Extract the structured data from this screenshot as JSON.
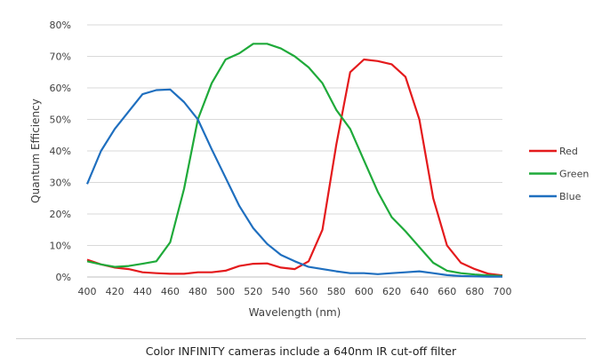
{
  "caption": "Color INFINITY cameras include a 640nm IR cut-off filter",
  "chart_data": {
    "type": "line",
    "title": "",
    "xlabel": "Wavelength (nm)",
    "ylabel": "Quantum Efficiency",
    "xlim": [
      400,
      700
    ],
    "ylim": [
      0,
      80
    ],
    "xticks": [
      "400",
      "420",
      "440",
      "460",
      "480",
      "500",
      "520",
      "540",
      "560",
      "580",
      "600",
      "620",
      "640",
      "660",
      "680",
      "700"
    ],
    "yticks": [
      "0%",
      "10%",
      "20%",
      "30%",
      "40%",
      "50%",
      "60%",
      "70%",
      "80%"
    ],
    "grid": true,
    "legend": "right",
    "series": [
      {
        "name": "Red",
        "color": "#e41a1c",
        "points": [
          [
            400,
            5.5
          ],
          [
            410,
            4
          ],
          [
            420,
            3
          ],
          [
            430,
            2.5
          ],
          [
            440,
            1.5
          ],
          [
            450,
            1.2
          ],
          [
            460,
            1
          ],
          [
            470,
            1
          ],
          [
            480,
            1.5
          ],
          [
            490,
            1.5
          ],
          [
            500,
            2
          ],
          [
            510,
            3.5
          ],
          [
            520,
            4.2
          ],
          [
            530,
            4.3
          ],
          [
            540,
            3
          ],
          [
            550,
            2.5
          ],
          [
            560,
            5
          ],
          [
            570,
            15
          ],
          [
            580,
            42
          ],
          [
            590,
            65
          ],
          [
            600,
            69
          ],
          [
            610,
            68.5
          ],
          [
            620,
            67.5
          ],
          [
            630,
            63.5
          ],
          [
            640,
            50
          ],
          [
            650,
            25
          ],
          [
            660,
            10
          ],
          [
            670,
            4.5
          ],
          [
            680,
            2.5
          ],
          [
            690,
            1
          ],
          [
            700,
            0.5
          ]
        ]
      },
      {
        "name": "Green",
        "color": "#1faa3a",
        "points": [
          [
            400,
            5
          ],
          [
            410,
            4
          ],
          [
            420,
            3.2
          ],
          [
            430,
            3.5
          ],
          [
            440,
            4.2
          ],
          [
            450,
            5
          ],
          [
            460,
            11
          ],
          [
            470,
            28
          ],
          [
            480,
            50
          ],
          [
            490,
            61.5
          ],
          [
            500,
            69
          ],
          [
            510,
            71
          ],
          [
            520,
            74
          ],
          [
            530,
            74
          ],
          [
            540,
            72.5
          ],
          [
            550,
            70
          ],
          [
            560,
            66.5
          ],
          [
            570,
            61.5
          ],
          [
            580,
            53
          ],
          [
            590,
            47
          ],
          [
            600,
            37
          ],
          [
            610,
            27
          ],
          [
            620,
            19
          ],
          [
            630,
            14.5
          ],
          [
            640,
            9.5
          ],
          [
            650,
            4.5
          ],
          [
            660,
            2
          ],
          [
            670,
            1.2
          ],
          [
            680,
            0.8
          ],
          [
            690,
            0.5
          ],
          [
            700,
            0.3
          ]
        ]
      },
      {
        "name": "Blue",
        "color": "#1f6fbf",
        "points": [
          [
            400,
            29.5
          ],
          [
            410,
            40
          ],
          [
            420,
            47
          ],
          [
            430,
            52.5
          ],
          [
            440,
            58
          ],
          [
            450,
            59.3
          ],
          [
            460,
            59.5
          ],
          [
            470,
            55.5
          ],
          [
            480,
            50
          ],
          [
            490,
            40.5
          ],
          [
            500,
            31.5
          ],
          [
            510,
            22.5
          ],
          [
            520,
            15.5
          ],
          [
            530,
            10.5
          ],
          [
            540,
            7
          ],
          [
            550,
            5
          ],
          [
            560,
            3.2
          ],
          [
            570,
            2.5
          ],
          [
            580,
            1.8
          ],
          [
            590,
            1.2
          ],
          [
            600,
            1.2
          ],
          [
            610,
            0.9
          ],
          [
            620,
            1.2
          ],
          [
            630,
            1.5
          ],
          [
            640,
            1.8
          ],
          [
            650,
            1.2
          ],
          [
            660,
            0.6
          ],
          [
            670,
            0.3
          ],
          [
            680,
            0.2
          ],
          [
            690,
            0.1
          ],
          [
            700,
            0.1
          ]
        ]
      }
    ]
  }
}
